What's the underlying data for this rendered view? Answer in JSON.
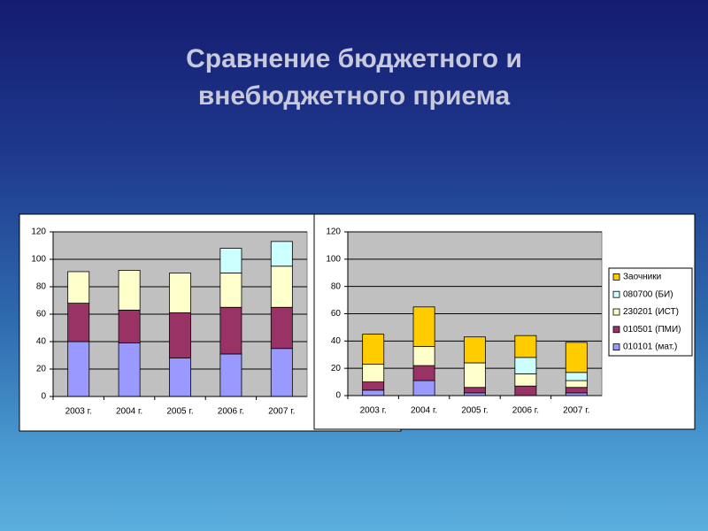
{
  "title": "Сравнение бюджетного и внебюджетного приема",
  "chart_data": [
    {
      "type": "stacked_bar",
      "categories": [
        "2003 г.",
        "2004 г.",
        "2005 г.",
        "2006 г.",
        "2007 г."
      ],
      "series": [
        {
          "color": "#9999ff",
          "values": [
            40,
            39,
            28,
            31,
            35
          ]
        },
        {
          "color": "#993366",
          "values": [
            28,
            24,
            33,
            34,
            30
          ]
        },
        {
          "color": "#ffffcc",
          "values": [
            23,
            29,
            29,
            25,
            30
          ]
        },
        {
          "color": "#ccffff",
          "values": [
            0,
            0,
            0,
            18,
            18
          ]
        }
      ],
      "ylim": [
        0,
        120
      ],
      "yticks": [
        0,
        20,
        40,
        60,
        80,
        100,
        120
      ],
      "grid": true
    },
    {
      "type": "stacked_bar",
      "categories": [
        "2003 г.",
        "2004 г.",
        "2005 г.",
        "2006 г.",
        "2007 г."
      ],
      "series": [
        {
          "name": "010101 (мат.)",
          "color": "#9999ff",
          "values": [
            4,
            11,
            2,
            0,
            2
          ]
        },
        {
          "name": "010501 (ПМИ)",
          "color": "#993366",
          "values": [
            6,
            11,
            4,
            7,
            4
          ]
        },
        {
          "name": "230201 (ИСТ)",
          "color": "#ffffcc",
          "values": [
            13,
            14,
            18,
            9,
            5
          ]
        },
        {
          "name": "080700 (БИ)",
          "color": "#ccffff",
          "values": [
            0,
            0,
            0,
            12,
            6
          ]
        },
        {
          "name": "Заочники",
          "color": "#ffcc00",
          "values": [
            22,
            29,
            19,
            16,
            22
          ]
        }
      ],
      "ylim": [
        0,
        120
      ],
      "yticks": [
        0,
        20,
        40,
        60,
        80,
        100,
        120
      ],
      "grid": true,
      "legend": "right"
    }
  ]
}
